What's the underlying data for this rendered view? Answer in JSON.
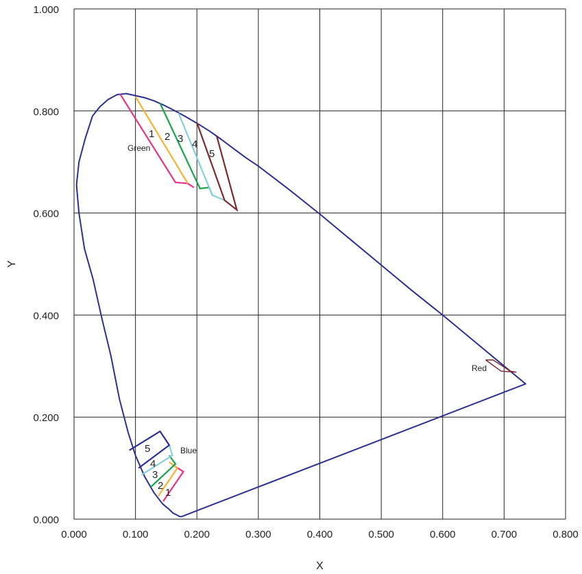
{
  "chart_data": {
    "type": "line",
    "title": "",
    "xlabel": "X",
    "ylabel": "Y",
    "xlim": [
      0,
      0.8
    ],
    "ylim": [
      0,
      1.0
    ],
    "grid": true,
    "x_ticks": [
      "0.000",
      "0.100",
      "0.200",
      "0.300",
      "0.400",
      "0.500",
      "0.600",
      "0.700",
      "0.800"
    ],
    "y_ticks": [
      "0.000",
      "0.200",
      "0.400",
      "0.600",
      "0.800",
      "1.000"
    ],
    "colors": {
      "locus": "#2b2f8f",
      "band1": "#e8318a",
      "band2": "#f6b132",
      "band3": "#1aa34a",
      "band4": "#86cfe0",
      "band5": "#7a2a2e",
      "blue5": "#2b2f8f"
    },
    "spectral_locus": [
      [
        0.175,
        0.005
      ],
      [
        0.172,
        0.005
      ],
      [
        0.169,
        0.007
      ],
      [
        0.166,
        0.009
      ],
      [
        0.161,
        0.012
      ],
      [
        0.155,
        0.019
      ],
      [
        0.144,
        0.03
      ],
      [
        0.13,
        0.052
      ],
      [
        0.115,
        0.083
      ],
      [
        0.1,
        0.125
      ],
      [
        0.088,
        0.17
      ],
      [
        0.074,
        0.235
      ],
      [
        0.06,
        0.32
      ],
      [
        0.046,
        0.39
      ],
      [
        0.031,
        0.47
      ],
      [
        0.017,
        0.53
      ],
      [
        0.008,
        0.6
      ],
      [
        0.004,
        0.655
      ],
      [
        0.008,
        0.7
      ],
      [
        0.018,
        0.745
      ],
      [
        0.03,
        0.79
      ],
      [
        0.042,
        0.808
      ],
      [
        0.055,
        0.822
      ],
      [
        0.07,
        0.832
      ],
      [
        0.085,
        0.834
      ],
      [
        0.1,
        0.83
      ],
      [
        0.115,
        0.826
      ],
      [
        0.13,
        0.82
      ],
      [
        0.145,
        0.812
      ],
      [
        0.16,
        0.803
      ],
      [
        0.18,
        0.79
      ],
      [
        0.2,
        0.776
      ],
      [
        0.22,
        0.761
      ],
      [
        0.24,
        0.744
      ],
      [
        0.26,
        0.726
      ],
      [
        0.28,
        0.708
      ],
      [
        0.3,
        0.692
      ],
      [
        0.35,
        0.646
      ],
      [
        0.4,
        0.598
      ],
      [
        0.45,
        0.548
      ],
      [
        0.5,
        0.498
      ],
      [
        0.55,
        0.448
      ],
      [
        0.6,
        0.4
      ],
      [
        0.65,
        0.35
      ],
      [
        0.7,
        0.3
      ],
      [
        0.735,
        0.265
      ],
      [
        0.175,
        0.005
      ]
    ],
    "green_bands": [
      {
        "name": "1",
        "points": [
          [
            0.075,
            0.833
          ],
          [
            0.165,
            0.66
          ],
          [
            0.185,
            0.658
          ],
          [
            0.195,
            0.65
          ]
        ]
      },
      {
        "name": "2",
        "points": [
          [
            0.1,
            0.828
          ],
          [
            0.185,
            0.658
          ]
        ]
      },
      {
        "name": "3",
        "points": [
          [
            0.14,
            0.815
          ],
          [
            0.205,
            0.648
          ],
          [
            0.22,
            0.65
          ],
          [
            0.225,
            0.635
          ]
        ]
      },
      {
        "name": "4",
        "points": [
          [
            0.17,
            0.796
          ],
          [
            0.225,
            0.635
          ],
          [
            0.245,
            0.625
          ]
        ]
      },
      {
        "name": "5",
        "points": [
          [
            0.2,
            0.777
          ],
          [
            0.245,
            0.625
          ],
          [
            0.265,
            0.606
          ],
          [
            0.232,
            0.752
          ]
        ]
      }
    ],
    "blue_bands": [
      {
        "name": "1",
        "points": [
          [
            0.145,
            0.035
          ],
          [
            0.178,
            0.093
          ],
          [
            0.165,
            0.103
          ]
        ]
      },
      {
        "name": "2",
        "points": [
          [
            0.137,
            0.045
          ],
          [
            0.168,
            0.1
          ],
          [
            0.155,
            0.112
          ]
        ]
      },
      {
        "name": "3",
        "points": [
          [
            0.125,
            0.063
          ],
          [
            0.165,
            0.108
          ],
          [
            0.155,
            0.125
          ]
        ]
      },
      {
        "name": "4",
        "points": [
          [
            0.11,
            0.087
          ],
          [
            0.16,
            0.125
          ],
          [
            0.155,
            0.145
          ]
        ]
      },
      {
        "name": "5",
        "points": [
          [
            0.09,
            0.135
          ],
          [
            0.14,
            0.172
          ],
          [
            0.155,
            0.145
          ],
          [
            0.105,
            0.1
          ]
        ]
      }
    ],
    "red_shape": [
      [
        0.67,
        0.312
      ],
      [
        0.682,
        0.312
      ],
      [
        0.71,
        0.29
      ],
      [
        0.72,
        0.288
      ],
      [
        0.695,
        0.29
      ],
      [
        0.67,
        0.312
      ]
    ],
    "labels": {
      "green": "Green",
      "blue": "Blue",
      "red": "Red",
      "green_nums": [
        "1",
        "2",
        "3",
        "4",
        "5"
      ],
      "blue_nums": [
        "1",
        "2",
        "3",
        "4",
        "5"
      ]
    }
  }
}
